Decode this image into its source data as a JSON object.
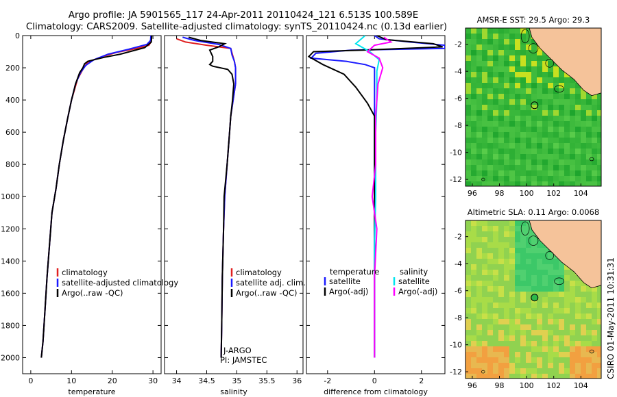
{
  "title_line1": "Argo profile: JA 5901565_117 24-Apr-2011 20110424_121 6.513S 100.589E",
  "title_line2": "Climatology: CARS2009. Satellite-adjusted climatology: synTS_20110424.nc (0.13d earlier)",
  "side_label": "CSIRO 01-May-2011 10:31:31",
  "colors": {
    "clim": "#e02020",
    "sat": "#1a1aff",
    "argo": "#000000",
    "sat_sal": "#00e5ee",
    "argo_sal": "#ff00ff",
    "land": "#f5c39a"
  },
  "chart_data": [
    {
      "type": "line",
      "id": "temperature",
      "xlabel": "temperature",
      "ylabel": "",
      "xlim": [
        -2,
        32
      ],
      "ylim": [
        2100,
        0
      ],
      "xticks": [
        "0",
        "10",
        "20",
        "30"
      ],
      "yticks": [
        "0",
        "200",
        "400",
        "600",
        "800",
        "1000",
        "1200",
        "1400",
        "1600",
        "1800",
        "2000"
      ],
      "legend": [
        "climatology",
        "satellite-adjusted climatology",
        "Argo(..raw -QC)"
      ],
      "series": [
        {
          "name": "climatology",
          "color": "clim",
          "points": [
            [
              29.6,
              0
            ],
            [
              29.5,
              40
            ],
            [
              29,
              60
            ],
            [
              26,
              80
            ],
            [
              21,
              105
            ],
            [
              17,
              135
            ],
            [
              14,
              165
            ],
            [
              13,
              200
            ],
            [
              11.5,
              270
            ],
            [
              10,
              400
            ],
            [
              9,
              520
            ],
            [
              8,
              650
            ],
            [
              7,
              800
            ],
            [
              6.2,
              950
            ],
            [
              5.2,
              1100
            ],
            [
              4.6,
              1300
            ],
            [
              4,
              1500
            ],
            [
              3.5,
              1700
            ],
            [
              3,
              1900
            ],
            [
              2.6,
              2000
            ]
          ]
        },
        {
          "name": "satellite-adjusted climatology",
          "color": "sat",
          "points": [
            [
              29.5,
              0
            ],
            [
              29.4,
              30
            ],
            [
              28.5,
              55
            ],
            [
              24,
              85
            ],
            [
              19,
              115
            ],
            [
              15.5,
              150
            ],
            [
              13.5,
              185
            ],
            [
              12.2,
              230
            ],
            [
              11,
              300
            ],
            [
              10,
              400
            ],
            [
              9,
              520
            ],
            [
              8,
              650
            ],
            [
              7,
              800
            ],
            [
              6.2,
              950
            ],
            [
              5.2,
              1100
            ],
            [
              4.6,
              1300
            ],
            [
              4,
              1500
            ],
            [
              3.5,
              1700
            ],
            [
              3,
              1900
            ],
            [
              2.6,
              2000
            ]
          ]
        },
        {
          "name": "Argo(..raw -QC)",
          "color": "argo",
          "points": [
            [
              29.7,
              0
            ],
            [
              29.6,
              40
            ],
            [
              28,
              75
            ],
            [
              22,
              115
            ],
            [
              18,
              135
            ],
            [
              15.5,
              150
            ],
            [
              14,
              160
            ],
            [
              13.2,
              175
            ],
            [
              12.8,
              200
            ],
            [
              12,
              230
            ],
            [
              11,
              300
            ],
            [
              10,
              400
            ],
            [
              9,
              520
            ],
            [
              8,
              650
            ],
            [
              7,
              800
            ],
            [
              6.2,
              950
            ],
            [
              5.2,
              1100
            ],
            [
              4.6,
              1300
            ],
            [
              4,
              1500
            ],
            [
              3.5,
              1700
            ],
            [
              3,
              1900
            ],
            [
              2.6,
              2000
            ]
          ]
        }
      ]
    },
    {
      "type": "line",
      "id": "salinity",
      "xlabel": "salinity",
      "ylabel": "",
      "xlim": [
        33.8,
        36.1
      ],
      "ylim": [
        2100,
        0
      ],
      "xticks": [
        "34",
        "34.5",
        "35",
        "35.5",
        "36"
      ],
      "yticks": [],
      "legend": [
        "climatology",
        "satellite adj. clim.",
        "Argo(..raw -QC)"
      ],
      "annotations": [
        "J-ARGO",
        "PI: JAMSTEC"
      ],
      "series": [
        {
          "name": "climatology",
          "color": "clim",
          "points": [
            [
              34.0,
              20
            ],
            [
              34.15,
              40
            ],
            [
              34.5,
              60
            ],
            [
              34.9,
              80
            ],
            [
              34.93,
              120
            ],
            [
              34.96,
              160
            ],
            [
              34.98,
              200
            ],
            [
              34.98,
              300
            ],
            [
              34.94,
              400
            ],
            [
              34.9,
              500
            ],
            [
              34.87,
              650
            ],
            [
              34.84,
              800
            ],
            [
              34.8,
              1000
            ],
            [
              34.78,
              1200
            ],
            [
              34.76,
              1500
            ],
            [
              34.75,
              1800
            ],
            [
              34.74,
              2000
            ]
          ]
        },
        {
          "name": "satellite adj. clim.",
          "color": "sat",
          "points": [
            [
              34.1,
              10
            ],
            [
              34.3,
              30
            ],
            [
              34.7,
              55
            ],
            [
              34.9,
              80
            ],
            [
              34.92,
              120
            ],
            [
              34.96,
              160
            ],
            [
              34.98,
              200
            ],
            [
              34.98,
              300
            ],
            [
              34.94,
              400
            ],
            [
              34.9,
              500
            ],
            [
              34.87,
              650
            ],
            [
              34.84,
              800
            ],
            [
              34.8,
              1000
            ],
            [
              34.78,
              1200
            ],
            [
              34.76,
              1500
            ],
            [
              34.75,
              1800
            ],
            [
              34.74,
              2000
            ]
          ]
        },
        {
          "name": "Argo(..raw -QC)",
          "color": "argo",
          "points": [
            [
              34.2,
              10
            ],
            [
              34.4,
              30
            ],
            [
              34.8,
              50
            ],
            [
              34.7,
              70
            ],
            [
              34.55,
              90
            ],
            [
              34.6,
              130
            ],
            [
              34.6,
              160
            ],
            [
              34.55,
              180
            ],
            [
              34.6,
              190
            ],
            [
              34.85,
              210
            ],
            [
              34.92,
              240
            ],
            [
              34.95,
              300
            ],
            [
              34.93,
              400
            ],
            [
              34.9,
              500
            ],
            [
              34.87,
              650
            ],
            [
              34.84,
              800
            ],
            [
              34.79,
              1000
            ],
            [
              34.78,
              1200
            ],
            [
              34.76,
              1500
            ],
            [
              34.75,
              1800
            ],
            [
              34.74,
              2000
            ]
          ]
        }
      ]
    },
    {
      "type": "line",
      "id": "difference",
      "xlabel": "difference from climatology",
      "ylabel": "",
      "xlim": [
        -2.9,
        3
      ],
      "ylim": [
        2100,
        0
      ],
      "xticks": [
        "-2",
        "0",
        "2"
      ],
      "yticks": [],
      "legend_temperature": [
        "temperature",
        "satellite",
        "Argo(-adj)"
      ],
      "legend_salinity": [
        "salinity",
        "satellite",
        "Argo(-adj)"
      ],
      "series": [
        {
          "name": "temperature satellite",
          "color": "sat",
          "points": [
            [
              0,
              0
            ],
            [
              0.2,
              20
            ],
            [
              1.5,
              40
            ],
            [
              3,
              60
            ],
            [
              3,
              80
            ],
            [
              -1,
              90
            ],
            [
              -2.5,
              110
            ],
            [
              -2.7,
              140
            ],
            [
              -1.2,
              160
            ],
            [
              -0.4,
              180
            ],
            [
              0,
              200
            ],
            [
              0,
              400
            ],
            [
              0,
              2000
            ]
          ]
        },
        {
          "name": "temperature Argo(-adj)",
          "color": "argo",
          "points": [
            [
              0.1,
              0
            ],
            [
              0.5,
              25
            ],
            [
              2.5,
              50
            ],
            [
              2.9,
              70
            ],
            [
              -0.5,
              90
            ],
            [
              -2.6,
              100
            ],
            [
              -2.8,
              130
            ],
            [
              -2.2,
              180
            ],
            [
              -1.3,
              240
            ],
            [
              -0.8,
              320
            ],
            [
              -0.3,
              420
            ],
            [
              0,
              500
            ],
            [
              0,
              1000
            ],
            [
              0,
              2000
            ]
          ]
        },
        {
          "name": "salinity satellite",
          "color": "sat_sal",
          "points": [
            [
              -0.4,
              0
            ],
            [
              -0.8,
              50
            ],
            [
              -0.2,
              100
            ],
            [
              0.2,
              150
            ],
            [
              0.1,
              220
            ],
            [
              0.1,
              400
            ],
            [
              0.05,
              600
            ],
            [
              0.05,
              1000
            ],
            [
              0,
              1300
            ],
            [
              0,
              2000
            ]
          ]
        },
        {
          "name": "salinity Argo(-adj)",
          "color": "argo_sal",
          "points": [
            [
              0.4,
              10
            ],
            [
              0.7,
              40
            ],
            [
              0,
              60
            ],
            [
              -0.3,
              100
            ],
            [
              0.2,
              140
            ],
            [
              0.35,
              200
            ],
            [
              0.15,
              300
            ],
            [
              0.05,
              500
            ],
            [
              0.05,
              800
            ],
            [
              -0.1,
              1000
            ],
            [
              0.1,
              1200
            ],
            [
              0,
              1500
            ],
            [
              0,
              2000
            ]
          ]
        }
      ]
    },
    {
      "type": "heatmap",
      "id": "sst_map",
      "title": "AMSR-E SST: 29.5 Argo: 29.3",
      "xticks": [
        "96",
        "98",
        "100",
        "102",
        "104"
      ],
      "yticks": [
        "-2",
        "-4",
        "-6",
        "-8",
        "-10",
        "-12"
      ],
      "xlim": [
        95.5,
        105.5
      ],
      "ylim": [
        -12.5,
        -0.8
      ],
      "marker": [
        100.589,
        -6.513
      ]
    },
    {
      "type": "heatmap",
      "id": "sla_map",
      "title": "Altimetric SLA: 0.11 Argo: 0.0068",
      "xticks": [
        "96",
        "98",
        "100",
        "102",
        "104"
      ],
      "yticks": [
        "-2",
        "-4",
        "-6",
        "-8",
        "-10",
        "-12"
      ],
      "xlim": [
        95.5,
        105.5
      ],
      "ylim": [
        -12.5,
        -0.8
      ],
      "marker": [
        100.589,
        -6.513
      ]
    }
  ]
}
